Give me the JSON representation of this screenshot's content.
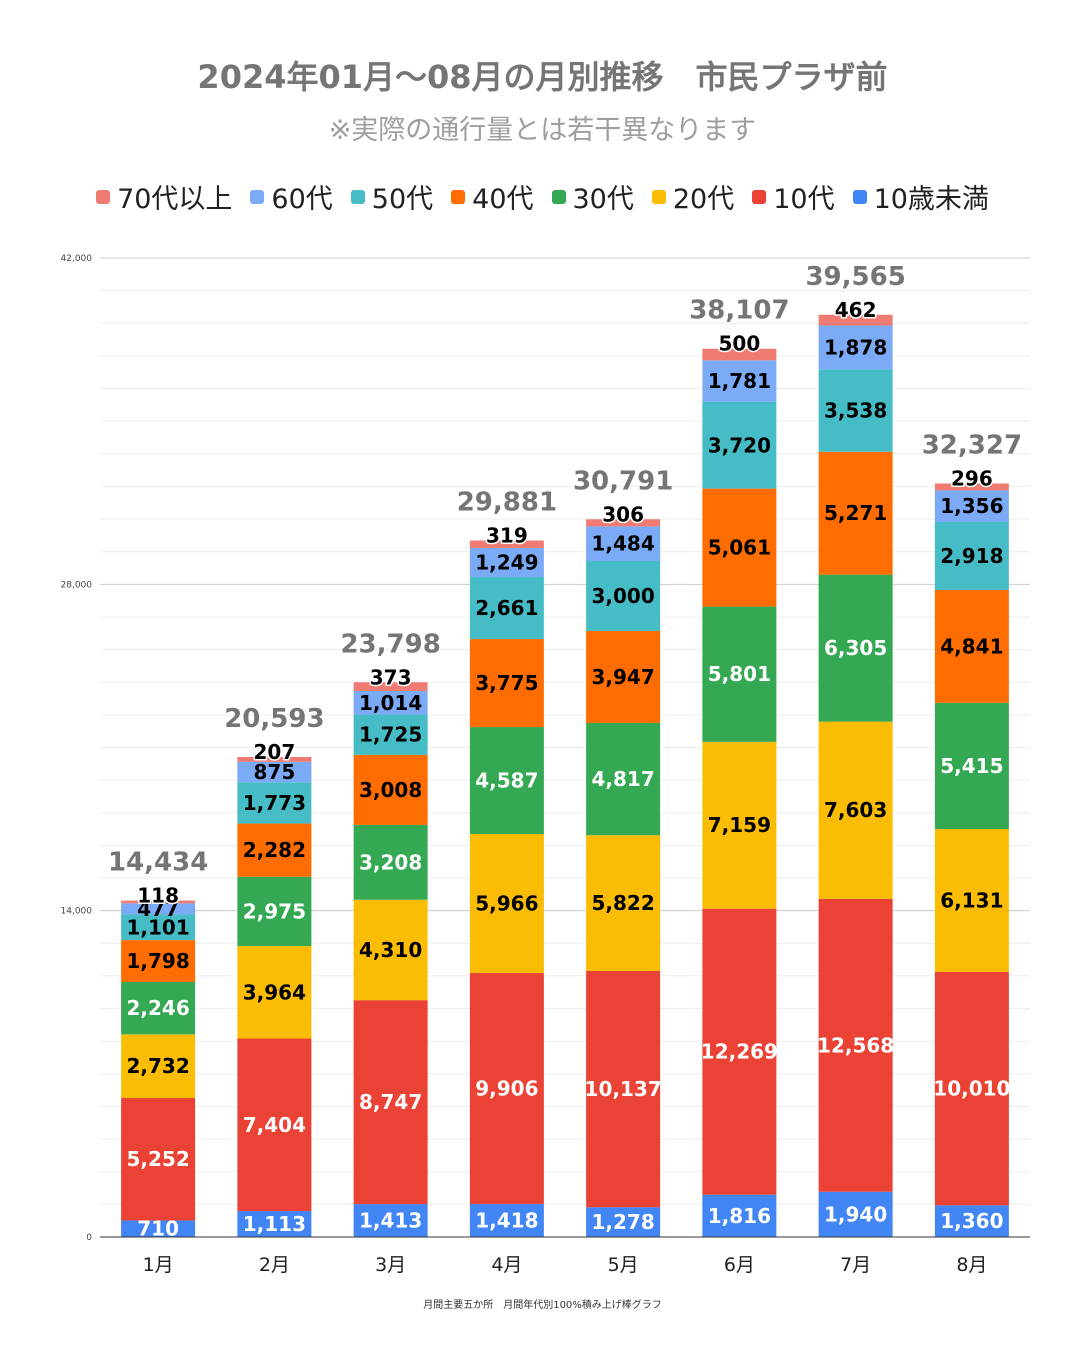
{
  "chart_data": {
    "type": "bar",
    "stacked": true,
    "title": "2024年01月～08月の月別推移　市民プラザ前",
    "subtitle": "※実際の通行量とは若干異なります",
    "footnote": "月間主要五か所　月間年代別100%積み上げ棒グラフ",
    "categories": [
      "1月",
      "2月",
      "3月",
      "4月",
      "5月",
      "6月",
      "7月",
      "8月"
    ],
    "ylim": [
      0,
      42000
    ],
    "yticks": [
      "0",
      "14,000",
      "28,000",
      "42,000"
    ],
    "ytick_values": [
      0,
      14000,
      28000,
      42000
    ],
    "grid": true,
    "legend_position": "top",
    "totals": [
      "14,434",
      "20,593",
      "23,798",
      "29,881",
      "30,791",
      "38,107",
      "39,565",
      "32,327"
    ],
    "total_values": [
      14434,
      20593,
      23798,
      29881,
      30791,
      38107,
      39565,
      32327
    ],
    "series": [
      {
        "name": "10歳未満",
        "color": "#4285f4",
        "label_color": "#ffffff",
        "values": [
          710,
          1113,
          1413,
          1418,
          1278,
          1816,
          1940,
          1360
        ],
        "labels": [
          "710",
          "1,113",
          "1,413",
          "1,418",
          "1,278",
          "1,816",
          "1,940",
          "1,360"
        ]
      },
      {
        "name": "10代",
        "color": "#ea4335",
        "label_color": "#ffffff",
        "values": [
          5252,
          7404,
          8747,
          9906,
          10137,
          12269,
          12568,
          10010
        ],
        "labels": [
          "5,252",
          "7,404",
          "8,747",
          "9,906",
          "10,137",
          "12,269",
          "12,568",
          "10,010"
        ]
      },
      {
        "name": "20代",
        "color": "#fbbc04",
        "label_color": "#000000",
        "values": [
          2732,
          3964,
          4310,
          5966,
          5822,
          7159,
          7603,
          6131
        ],
        "labels": [
          "2,732",
          "3,964",
          "4,310",
          "5,966",
          "5,822",
          "7,159",
          "7,603",
          "6,131"
        ]
      },
      {
        "name": "30代",
        "color": "#34a853",
        "label_color": "#ffffff",
        "values": [
          2246,
          2975,
          3208,
          4587,
          4817,
          5801,
          6305,
          5415
        ],
        "labels": [
          "2,246",
          "2,975",
          "3,208",
          "4,587",
          "4,817",
          "5,801",
          "6,305",
          "5,415"
        ]
      },
      {
        "name": "40代",
        "color": "#ff6d01",
        "label_color": "#000000",
        "values": [
          1798,
          2282,
          3008,
          3775,
          3947,
          5061,
          5271,
          4841
        ],
        "labels": [
          "1,798",
          "2,282",
          "3,008",
          "3,775",
          "3,947",
          "5,061",
          "5,271",
          "4,841"
        ]
      },
      {
        "name": "50代",
        "color": "#46bdc6",
        "label_color": "#000000",
        "values": [
          1101,
          1773,
          1725,
          2661,
          3000,
          3720,
          3538,
          2918
        ],
        "labels": [
          "1,101",
          "1,773",
          "1,725",
          "2,661",
          "3,000",
          "3,720",
          "3,538",
          "2,918"
        ]
      },
      {
        "name": "60代",
        "color": "#7baaf7",
        "label_color": "#000000",
        "values": [
          477,
          875,
          1014,
          1249,
          1484,
          1781,
          1878,
          1356
        ],
        "labels": [
          "477",
          "875",
          "1,014",
          "1,249",
          "1,484",
          "1,781",
          "1,878",
          "1,356"
        ]
      },
      {
        "name": "70代以上",
        "color": "#f07b72",
        "label_color": "#000000",
        "values": [
          118,
          207,
          373,
          319,
          306,
          500,
          462,
          296
        ],
        "labels": [
          "118",
          "207",
          "373",
          "319",
          "306",
          "500",
          "462",
          "296"
        ]
      }
    ],
    "legend_order": [
      "70代以上",
      "60代",
      "50代",
      "40代",
      "30代",
      "20代",
      "10代",
      "10歳未満"
    ]
  }
}
